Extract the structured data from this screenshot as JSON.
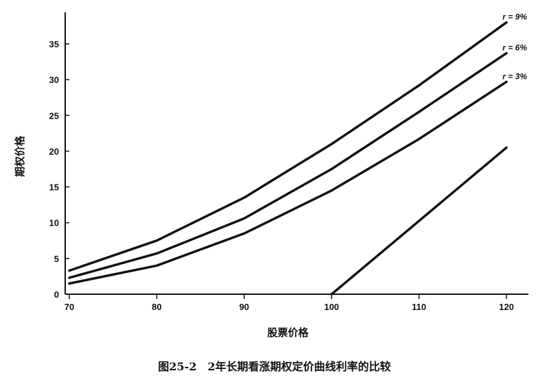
{
  "caption": "图25-2　2年长期看涨期权定价曲线利率的比较",
  "chart_data": {
    "type": "line",
    "xlabel": "股票价格",
    "ylabel": "期权价格",
    "xlim": [
      70,
      120
    ],
    "ylim": [
      0,
      38
    ],
    "xticks": [
      70,
      80,
      90,
      100,
      110,
      120
    ],
    "yticks": [
      0,
      5,
      10,
      15,
      20,
      25,
      30,
      35
    ],
    "grid": false,
    "series": [
      {
        "name": "r = 9%",
        "x": [
          70,
          80,
          90,
          100,
          110,
          120
        ],
        "y": [
          3.3,
          7.5,
          13.5,
          21.0,
          29.2,
          38.0
        ]
      },
      {
        "name": "r = 6%",
        "x": [
          70,
          80,
          90,
          100,
          110,
          120
        ],
        "y": [
          2.3,
          5.7,
          10.6,
          17.5,
          25.5,
          33.7
        ]
      },
      {
        "name": "r = 3%",
        "x": [
          70,
          80,
          90,
          100,
          110,
          120
        ],
        "y": [
          1.5,
          4.0,
          8.5,
          14.5,
          21.7,
          29.7
        ]
      },
      {
        "name": "",
        "x": [
          100,
          120
        ],
        "y": [
          0,
          20.5
        ]
      }
    ]
  }
}
